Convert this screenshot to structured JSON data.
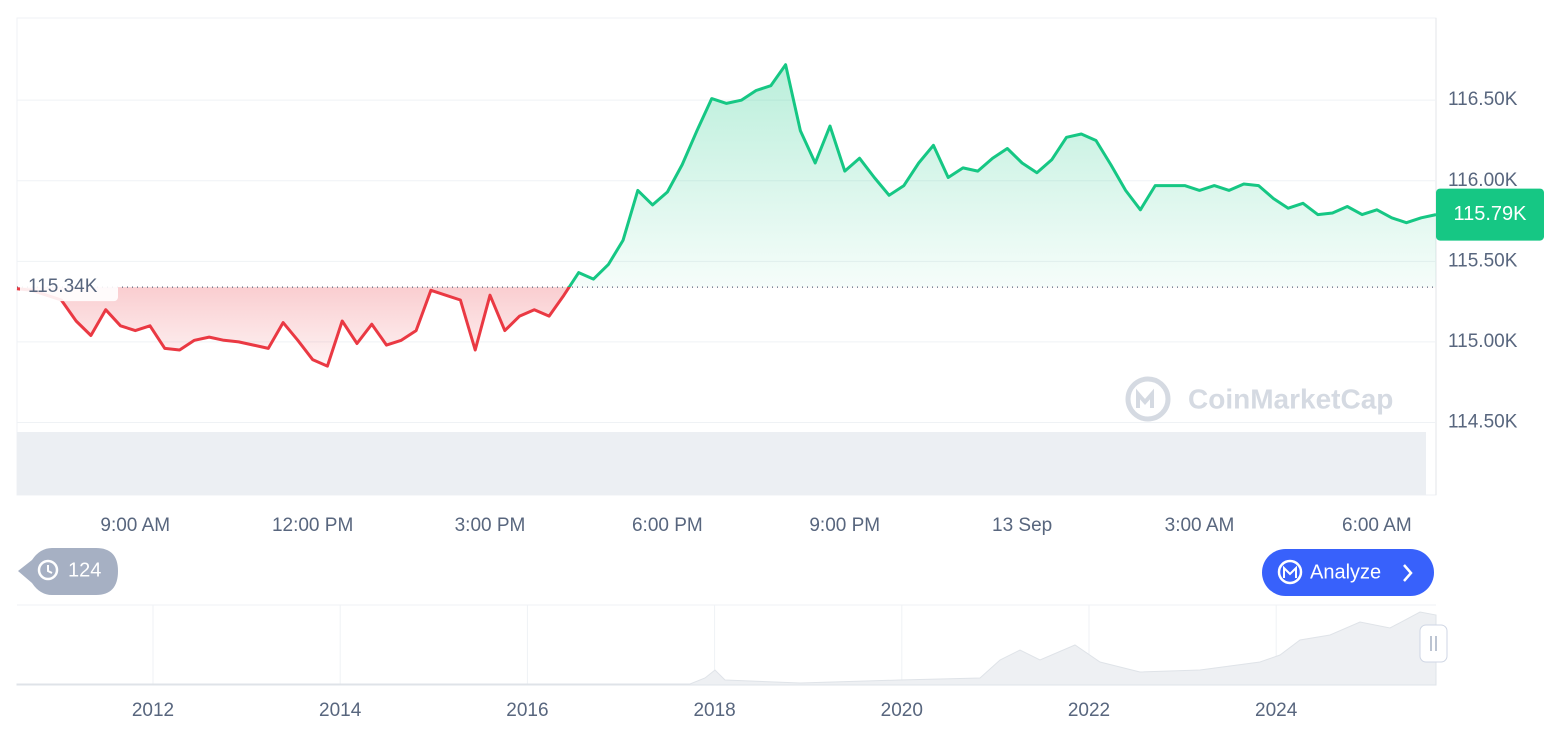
{
  "chart_data": {
    "type": "line",
    "categories": [
      null,
      null,
      null,
      null,
      null,
      null,
      null,
      null,
      "9:00 AM",
      null,
      null,
      null,
      null,
      null,
      null,
      null,
      null,
      null,
      null,
      null,
      "12:00 PM",
      null,
      null,
      null,
      null,
      null,
      null,
      null,
      null,
      null,
      null,
      null,
      "3:00 PM",
      null,
      null,
      null,
      null,
      null,
      null,
      null,
      null,
      null,
      null,
      null,
      "6:00 PM",
      null,
      null,
      null,
      null,
      null,
      null,
      null,
      null,
      null,
      null,
      null,
      "9:00 PM",
      null,
      null,
      null,
      null,
      null,
      null,
      null,
      null,
      null,
      null,
      null,
      "13 Sep",
      null,
      null,
      null,
      null,
      null,
      null,
      null,
      null,
      null,
      null,
      null,
      "3:00 AM",
      null,
      null,
      null,
      null,
      null,
      null,
      null,
      null,
      null,
      null,
      null,
      "6:00 AM",
      null,
      null,
      null,
      null
    ],
    "values": [
      115330,
      115320,
      115290,
      115260,
      115130,
      115040,
      115200,
      115100,
      115070,
      115100,
      114960,
      114950,
      115010,
      115030,
      115010,
      115000,
      114980,
      114960,
      115120,
      115010,
      114890,
      114850,
      115130,
      114990,
      115110,
      114980,
      115010,
      115070,
      115320,
      115290,
      115260,
      114950,
      115290,
      115070,
      115160,
      115200,
      115160,
      115290,
      115430,
      115390,
      115480,
      115630,
      115940,
      115850,
      115930,
      116100,
      116310,
      116510,
      116480,
      116500,
      116560,
      116590,
      116720,
      116310,
      116110,
      116340,
      116060,
      116140,
      116020,
      115910,
      115970,
      116110,
      116220,
      116020,
      116080,
      116060,
      116140,
      116200,
      116110,
      116050,
      116130,
      116270,
      116290,
      116250,
      116100,
      115940,
      115820,
      115970,
      115970,
      115970,
      115940,
      115970,
      115940,
      115980,
      115970,
      115890,
      115830,
      115860,
      115790,
      115800,
      115840,
      115790,
      115820,
      115770,
      115740,
      115770,
      115790
    ],
    "up_color": "#16c784",
    "down_color": "#ea3943",
    "ylim": [
      114050,
      117010
    ],
    "yticks": [
      {
        "value": 114500,
        "label": "114.50K"
      },
      {
        "value": 115000,
        "label": "115.00K"
      },
      {
        "value": 115500,
        "label": "115.50K"
      },
      {
        "value": 116000,
        "label": "116.00K"
      },
      {
        "value": 116500,
        "label": "116.50K"
      }
    ],
    "grid": true,
    "baseline": {
      "value": 115340,
      "label": "115.34K"
    },
    "current": {
      "value": 115790,
      "label": "115.79K"
    },
    "watermark": "CoinMarketCap",
    "navigator_labels": [
      "2012",
      "2014",
      "2016",
      "2018",
      "2020",
      "2022",
      "2024"
    ]
  },
  "ui": {
    "history_count": "124",
    "analyze_button": "Analyze"
  }
}
